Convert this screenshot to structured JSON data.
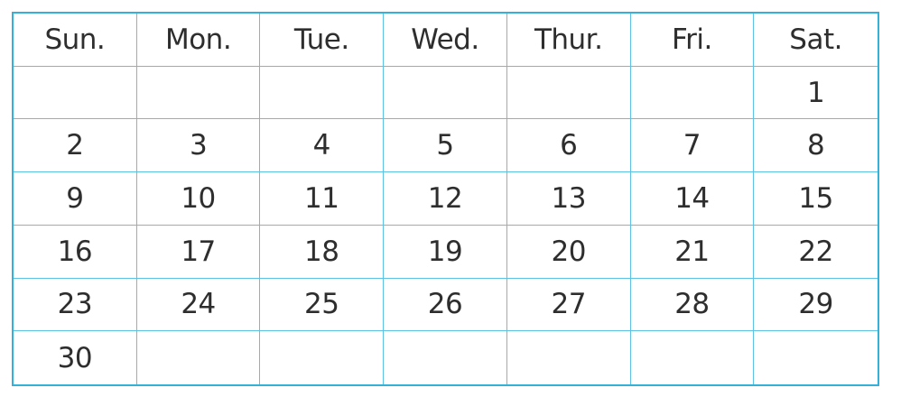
{
  "calendar": {
    "weekdays": [
      "Sun.",
      "Mon.",
      "Tue.",
      "Wed.",
      "Thur.",
      "Fri.",
      "Sat."
    ],
    "weeks": [
      [
        "",
        "",
        "",
        "",
        "",
        "",
        "1"
      ],
      [
        "2",
        "3",
        "4",
        "5",
        "6",
        "7",
        "8"
      ],
      [
        "9",
        "10",
        "11",
        "12",
        "13",
        "14",
        "15"
      ],
      [
        "16",
        "17",
        "18",
        "19",
        "20",
        "21",
        "22"
      ],
      [
        "23",
        "24",
        "25",
        "26",
        "27",
        "28",
        "29"
      ],
      [
        "30",
        "",
        "",
        "",
        "",
        "",
        ""
      ]
    ],
    "grid_color": "#35b1d9"
  }
}
